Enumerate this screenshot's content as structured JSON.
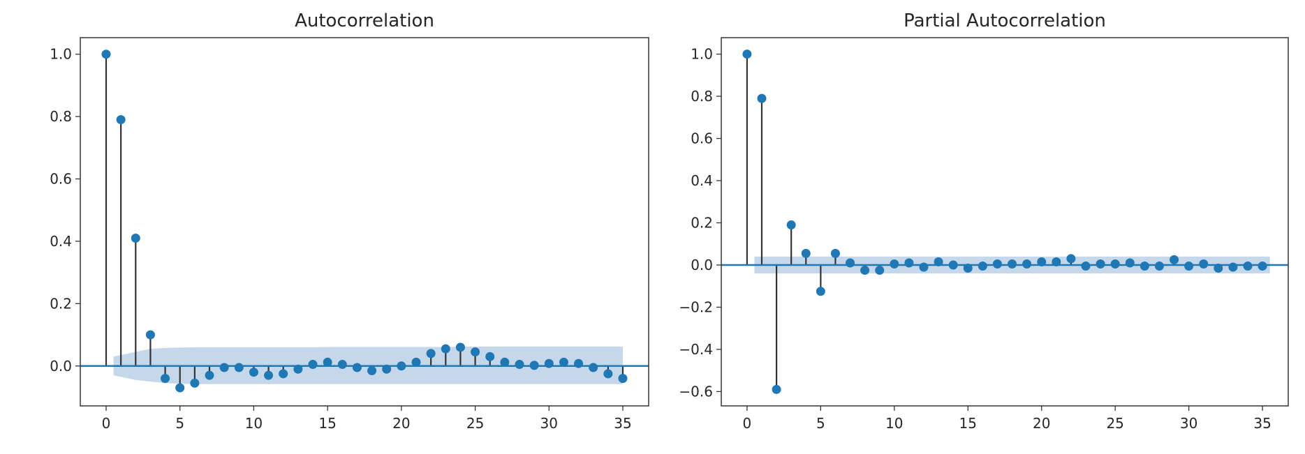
{
  "colors": {
    "marker": "#1f77b4",
    "band": "#c5d7ea",
    "stem": "#333333",
    "frame": "#333333",
    "text": "#262626"
  },
  "chart_data": [
    {
      "type": "stem",
      "title": "Autocorrelation",
      "xlabel": "",
      "ylabel": "",
      "xlim": [
        -1.75,
        36.75
      ],
      "ylim": [
        -0.128,
        1.053
      ],
      "xticks": [
        0,
        5,
        10,
        15,
        20,
        25,
        30,
        35
      ],
      "yticks": [
        0.0,
        0.2,
        0.4,
        0.6,
        0.8,
        1.0
      ],
      "ytick_labels": [
        "0.0",
        "0.2",
        "0.4",
        "0.6",
        "0.8",
        "1.0"
      ],
      "baseline": 0,
      "x": [
        0,
        1,
        2,
        3,
        4,
        5,
        6,
        7,
        8,
        9,
        10,
        11,
        12,
        13,
        14,
        15,
        16,
        17,
        18,
        19,
        20,
        21,
        22,
        23,
        24,
        25,
        26,
        27,
        28,
        29,
        30,
        31,
        32,
        33,
        34,
        35
      ],
      "values": [
        1.0,
        0.79,
        0.41,
        0.1,
        -0.04,
        -0.07,
        -0.055,
        -0.03,
        -0.005,
        -0.005,
        -0.02,
        -0.03,
        -0.025,
        -0.01,
        0.005,
        0.012,
        0.005,
        -0.005,
        -0.015,
        -0.01,
        0.0,
        0.012,
        0.04,
        0.055,
        0.06,
        0.045,
        0.03,
        0.012,
        0.005,
        0.002,
        0.008,
        0.012,
        0.008,
        -0.005,
        -0.025,
        -0.04
      ],
      "confidence_band": {
        "x": [
          0.5,
          1,
          2,
          3,
          4,
          5,
          6,
          7,
          8,
          9,
          10,
          11,
          12,
          13,
          14,
          15,
          16,
          17,
          18,
          19,
          20,
          21,
          22,
          23,
          24,
          25,
          26,
          27,
          28,
          29,
          30,
          31,
          32,
          33,
          34,
          35
        ],
        "upper": [
          0.03,
          0.035,
          0.045,
          0.055,
          0.058,
          0.059,
          0.06,
          0.06,
          0.06,
          0.06,
          0.06,
          0.06,
          0.06,
          0.06,
          0.06,
          0.061,
          0.061,
          0.061,
          0.061,
          0.061,
          0.061,
          0.061,
          0.061,
          0.061,
          0.062,
          0.062,
          0.062,
          0.062,
          0.062,
          0.062,
          0.062,
          0.062,
          0.062,
          0.062,
          0.062,
          0.062
        ],
        "lower": [
          -0.03,
          -0.035,
          -0.045,
          -0.05,
          -0.055,
          -0.057,
          -0.058,
          -0.058,
          -0.058,
          -0.058,
          -0.058,
          -0.058,
          -0.058,
          -0.058,
          -0.058,
          -0.058,
          -0.058,
          -0.058,
          -0.058,
          -0.058,
          -0.058,
          -0.058,
          -0.058,
          -0.058,
          -0.058,
          -0.058,
          -0.058,
          -0.058,
          -0.058,
          -0.058,
          -0.058,
          -0.058,
          -0.058,
          -0.058,
          -0.058,
          -0.058
        ]
      }
    },
    {
      "type": "stem",
      "title": "Partial Autocorrelation",
      "xlabel": "",
      "ylabel": "",
      "xlim": [
        -1.75,
        36.75
      ],
      "ylim": [
        -0.668,
        1.078
      ],
      "xticks": [
        0,
        5,
        10,
        15,
        20,
        25,
        30,
        35
      ],
      "yticks": [
        -0.6,
        -0.4,
        -0.2,
        0.0,
        0.2,
        0.4,
        0.6,
        0.8,
        1.0
      ],
      "ytick_labels": [
        "−0.6",
        "−0.4",
        "−0.2",
        "0.0",
        "0.2",
        "0.4",
        "0.6",
        "0.8",
        "1.0"
      ],
      "baseline": 0,
      "x": [
        0,
        1,
        2,
        3,
        4,
        5,
        6,
        7,
        8,
        9,
        10,
        11,
        12,
        13,
        14,
        15,
        16,
        17,
        18,
        19,
        20,
        21,
        22,
        23,
        24,
        25,
        26,
        27,
        28,
        29,
        30,
        31,
        32,
        33,
        34,
        35
      ],
      "values": [
        1.0,
        0.79,
        -0.59,
        0.19,
        0.055,
        -0.125,
        0.055,
        0.01,
        -0.025,
        -0.025,
        0.005,
        0.01,
        -0.01,
        0.015,
        0.0,
        -0.015,
        -0.005,
        0.005,
        0.005,
        0.005,
        0.015,
        0.015,
        0.03,
        -0.005,
        0.005,
        0.005,
        0.01,
        -0.005,
        -0.005,
        0.025,
        -0.005,
        0.005,
        -0.015,
        -0.01,
        -0.005,
        -0.005
      ],
      "confidence_band": {
        "x": [
          0.5,
          35.5
        ],
        "upper": [
          0.04,
          0.04
        ],
        "lower": [
          -0.04,
          -0.04
        ]
      }
    }
  ]
}
